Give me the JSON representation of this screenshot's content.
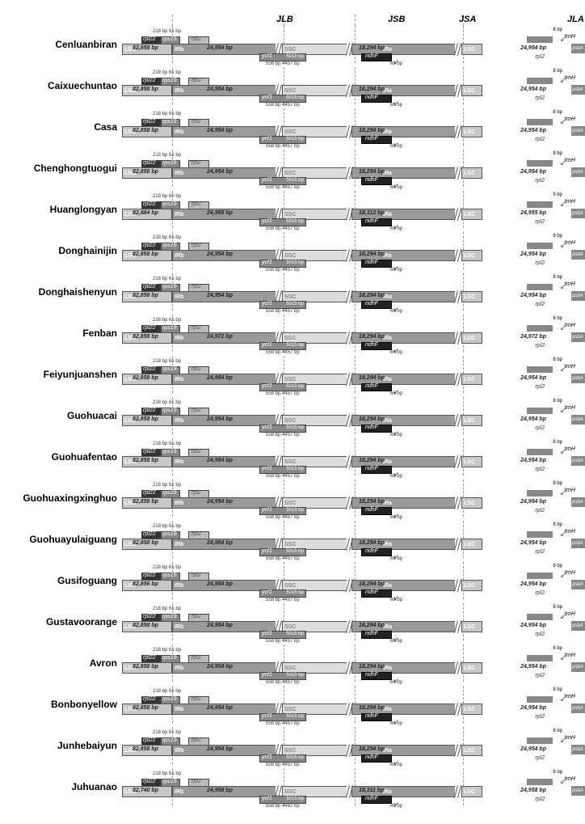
{
  "headers": {
    "jlb": "JLB",
    "jsb": "JSB",
    "jsa": "JSA",
    "jla": "JLA"
  },
  "labels": {
    "lsc": "LSC",
    "irb": "IRb",
    "ssc": "SSC",
    "ira": "IRa",
    "rpl22": "rpl22",
    "rps19": "rps19",
    "rpl2": "rpl2",
    "ycf1": "ycf1",
    "ndhf": "ndhF",
    "trnh": "trnH",
    "psba": "psbA"
  },
  "rows": [
    {
      "name": "Cenluanbiran",
      "lsc": "82,858 bp",
      "ir": "24,954 bp",
      "ssc": "18,294 bp",
      "ir2": "24,954 bp",
      "d1": "218 bp 61 bp",
      "d2": "558 bp 4457 bp",
      "d3": "5015 bp",
      "d4": "66 bp",
      "bp": "8 bp"
    },
    {
      "name": "Caixuechuntao",
      "lsc": "82,858 bp",
      "ir": "24,954 bp",
      "ssc": "18,294 bp",
      "ir2": "24,954 bp",
      "d1": "218 bp 61 bp",
      "d2": "558 bp 4457 bp",
      "d3": "5015 bp",
      "d4": "66 bp",
      "bp": "8 bp"
    },
    {
      "name": "Casa",
      "lsc": "82,858 bp",
      "ir": "24,954 bp",
      "ssc": "18,294 bp",
      "ir2": "24,954 bp",
      "d1": "218 bp 61 bp",
      "d2": "558 bp 4457 bp",
      "d3": "5015 bp",
      "d4": "66 bp",
      "bp": "8 bp"
    },
    {
      "name": "Chenghongtuogui",
      "lsc": "82,858 bp",
      "ir": "24,954 bp",
      "ssc": "18,294 bp",
      "ir2": "24,954 bp",
      "d1": "218 bp 61 bp",
      "d2": "558 bp 4457 bp",
      "d3": "5015 bp",
      "d4": "66 bp",
      "bp": "8 bp"
    },
    {
      "name": "Huanglongyan",
      "lsc": "82,884 bp",
      "ir": "24,955 bp",
      "ssc": "18,312 bp",
      "ir2": "24,955 bp",
      "d1": "218 bp 60 bp",
      "d2": "558 bp 4457 bp",
      "d3": "5015 bp",
      "d4": "66 bp",
      "bp": "9 bp"
    },
    {
      "name": "Donghainijin",
      "lsc": "82,858 bp",
      "ir": "24,954 bp",
      "ssc": "18,294 bp",
      "ir2": "24,954 bp",
      "d1": "218 bp 61 bp",
      "d2": "558 bp 4457 bp",
      "d3": "5015 bp",
      "d4": "66 bp",
      "bp": "8 bp"
    },
    {
      "name": "Donghaishenyun",
      "lsc": "82,858 bp",
      "ir": "24,954 bp",
      "ssc": "18,294 bp",
      "ir2": "24,954 bp",
      "d1": "218 bp 61 bp",
      "d2": "558 bp 4457 bp",
      "d3": "5015 bp",
      "d4": "66 bp",
      "bp": "8 bp"
    },
    {
      "name": "Fenban",
      "lsc": "82,858 bp",
      "ir": "24,972 bp",
      "ssc": "18,294 bp",
      "ir2": "24,972 bp",
      "d1": "218 bp 61 bp",
      "d2": "558 bp 4457 bp",
      "d3": "5015 bp",
      "d4": "66 bp",
      "bp": "8 bp"
    },
    {
      "name": "Feiyunjuanshen",
      "lsc": "82,858 bp",
      "ir": "24,954 bp",
      "ssc": "18,294 bp",
      "ir2": "24,954 bp",
      "d1": "218 bp 61 bp",
      "d2": "558 bp 4457 bp",
      "d3": "5015 bp",
      "d4": "66 bp",
      "bp": "8 bp"
    },
    {
      "name": "Guohuacai",
      "lsc": "82,858 bp",
      "ir": "24,954 bp",
      "ssc": "18,294 bp",
      "ir2": "24,954 bp",
      "d1": "218 bp 61 bp",
      "d2": "558 bp 4457 bp",
      "d3": "5015 bp",
      "d4": "66 bp",
      "bp": "8 bp"
    },
    {
      "name": "Guohuafentao",
      "lsc": "82,858 bp",
      "ir": "24,954 bp",
      "ssc": "18,294 bp",
      "ir2": "24,954 bp",
      "d1": "218 bp 61 bp",
      "d2": "558 bp 4457 bp",
      "d3": "5015 bp",
      "d4": "66 bp",
      "bp": "8 bp"
    },
    {
      "name": "Guohuaxingxinghuo",
      "lsc": "82,858 bp",
      "ir": "24,954 bp",
      "ssc": "18,294 bp",
      "ir2": "24,954 bp",
      "d1": "218 bp 61 bp",
      "d2": "558 bp 4457 bp",
      "d3": "5015 bp",
      "d4": "66 bp",
      "bp": "8 bp"
    },
    {
      "name": "Guohuayulaiguang",
      "lsc": "82,858 bp",
      "ir": "24,954 bp",
      "ssc": "18,294 bp",
      "ir2": "24,954 bp",
      "d1": "218 bp 61 bp",
      "d2": "558 bp 4457 bp",
      "d3": "5015 bp",
      "d4": "66 bp",
      "bp": "8 bp"
    },
    {
      "name": "Gusifoguang",
      "lsc": "82,856 bp",
      "ir": "24,954 bp",
      "ssc": "18,294 bp",
      "ir2": "24,954 bp",
      "d1": "218 bp 61 bp",
      "d2": "558 bp 4457 bp",
      "d3": "5015 bp",
      "d4": "66 bp",
      "bp": "8 bp"
    },
    {
      "name": "Gustavoorange",
      "lsc": "82,858 bp",
      "ir": "24,954 bp",
      "ssc": "18,294 bp",
      "ir2": "24,954 bp",
      "d1": "218 bp 61 bp",
      "d2": "558 bp 4457 bp",
      "d3": "5015 bp",
      "d4": "66 bp",
      "bp": "8 bp"
    },
    {
      "name": "Avron",
      "lsc": "82,858 bp",
      "ir": "24,954 bp",
      "ssc": "18,294 bp",
      "ir2": "24,954 bp",
      "d1": "218 bp 61 bp",
      "d2": "558 bp 4457 bp",
      "d3": "5015 bp",
      "d4": "66 bp",
      "bp": "8 bp"
    },
    {
      "name": "Bonbonyellow",
      "lsc": "82,858 bp",
      "ir": "24,954 bp",
      "ssc": "18,294 bp",
      "ir2": "24,954 bp",
      "d1": "218 bp 61 bp",
      "d2": "558 bp 4457 bp",
      "d3": "5015 bp",
      "d4": "66 bp",
      "bp": "8 bp"
    },
    {
      "name": "Junhebaiyun",
      "lsc": "82,858 bp",
      "ir": "24,954 bp",
      "ssc": "18,294 bp",
      "ir2": "24,954 bp",
      "d1": "218 bp 61 bp",
      "d2": "558 bp 4457 bp",
      "d3": "5015 bp",
      "d4": "66 bp",
      "bp": "8 bp"
    },
    {
      "name": "Juhuanao",
      "lsc": "82,740 bp",
      "ir": "24,958 bp",
      "ssc": "18,311 bp",
      "ir2": "24,958 bp",
      "d1": "218 bp 61 bp",
      "d2": "558 bp 4462 bp",
      "d3": "5015 bp",
      "d4": "49 bp",
      "bp": "8 bp"
    }
  ]
}
